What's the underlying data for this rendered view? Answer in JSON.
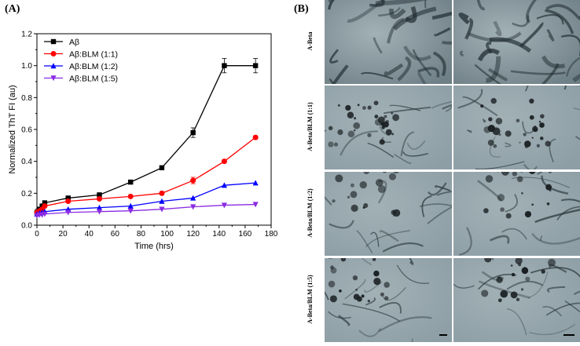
{
  "panel_a_label": "(A)",
  "panel_b_label": "(B)",
  "chart_data": {
    "type": "line",
    "title": "",
    "xlabel": "Time (hrs)",
    "ylabel": "Normalized ThT FI (au)",
    "xlim": [
      0,
      180
    ],
    "ylim": [
      0,
      1.2
    ],
    "xticks": [
      0,
      20,
      40,
      60,
      80,
      100,
      120,
      140,
      160,
      180
    ],
    "yticks": [
      0.0,
      0.2,
      0.4,
      0.6,
      0.8,
      1.0,
      1.2
    ],
    "ytick_labels": [
      "0.0",
      "0.2",
      "0.4",
      "0.6",
      "0.8",
      "1.0",
      "1.2"
    ],
    "grid": false,
    "legend_position": "top-left",
    "x": [
      0,
      2,
      4,
      6,
      24,
      48,
      72,
      96,
      120,
      144,
      168
    ],
    "series": [
      {
        "name": "Aβ",
        "color": "#000000",
        "marker": "square",
        "values": [
          0.08,
          0.1,
          0.12,
          0.14,
          0.17,
          0.19,
          0.27,
          0.36,
          0.58,
          1.0,
          1.0
        ],
        "errors": [
          0.005,
          0.005,
          0.005,
          0.01,
          0.01,
          0.01,
          0.01,
          0.01,
          0.03,
          0.045,
          0.045
        ]
      },
      {
        "name": "Aβ:BLM (1:1)",
        "color": "#ff0000",
        "marker": "circle",
        "values": [
          0.08,
          0.09,
          0.1,
          0.12,
          0.15,
          0.165,
          0.18,
          0.2,
          0.28,
          0.4,
          0.55
        ],
        "errors": [
          0.005,
          0.005,
          0.005,
          0.005,
          0.005,
          0.005,
          0.005,
          0.01,
          0.02,
          0.01,
          0.01
        ]
      },
      {
        "name": "Aβ:BLM (1:2)",
        "color": "#0000ff",
        "marker": "triangle-up",
        "values": [
          0.07,
          0.075,
          0.08,
          0.085,
          0.1,
          0.11,
          0.12,
          0.15,
          0.17,
          0.25,
          0.265
        ],
        "errors": [
          0.005,
          0.005,
          0.005,
          0.005,
          0.005,
          0.005,
          0.005,
          0.005,
          0.005,
          0.005,
          0.005
        ]
      },
      {
        "name": "Aβ:BLM (1:5)",
        "color": "#8a2be2",
        "marker": "triangle-down",
        "values": [
          0.06,
          0.065,
          0.065,
          0.07,
          0.08,
          0.085,
          0.09,
          0.1,
          0.115,
          0.125,
          0.13
        ],
        "errors": [
          0.005,
          0.005,
          0.005,
          0.005,
          0.005,
          0.005,
          0.005,
          0.005,
          0.005,
          0.005,
          0.005
        ]
      }
    ]
  },
  "tem_panel": {
    "rows": [
      {
        "label": "A-Beta"
      },
      {
        "label": "A-Beta/BLM (1:1)"
      },
      {
        "label": "A-Beta/BLM (1:2)"
      },
      {
        "label": "A-Beta/BLM (1:5)"
      }
    ]
  }
}
